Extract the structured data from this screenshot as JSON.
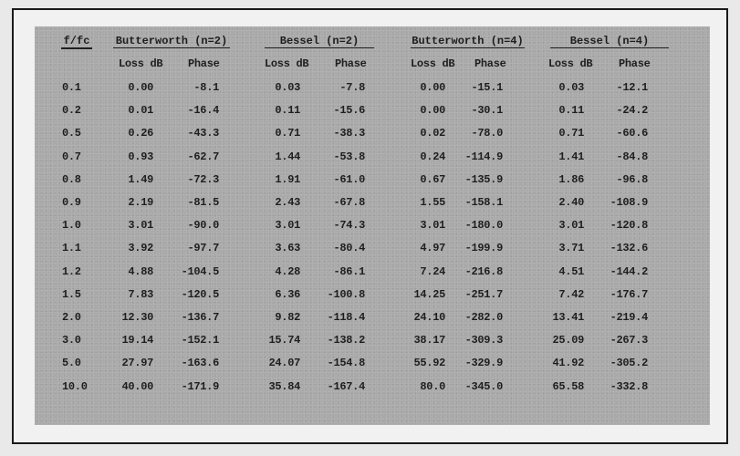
{
  "table": {
    "first_header": "f/fc",
    "groups": [
      "Butterworth (n=2)",
      "Bessel (n=2)",
      "Butterworth (n=4)",
      "Bessel (n=4)"
    ],
    "subheaders": [
      "Loss dB",
      "Phase"
    ],
    "rows": [
      [
        "0.1",
        "0.00",
        "-8.1",
        "0.03",
        "-7.8",
        "0.00",
        "-15.1",
        "0.03",
        "-12.1"
      ],
      [
        "0.2",
        "0.01",
        "-16.4",
        "0.11",
        "-15.6",
        "0.00",
        "-30.1",
        "0.11",
        "-24.2"
      ],
      [
        "0.5",
        "0.26",
        "-43.3",
        "0.71",
        "-38.3",
        "0.02",
        "-78.0",
        "0.71",
        "-60.6"
      ],
      [
        "0.7",
        "0.93",
        "-62.7",
        "1.44",
        "-53.8",
        "0.24",
        "-114.9",
        "1.41",
        "-84.8"
      ],
      [
        "0.8",
        "1.49",
        "-72.3",
        "1.91",
        "-61.0",
        "0.67",
        "-135.9",
        "1.86",
        "-96.8"
      ],
      [
        "0.9",
        "2.19",
        "-81.5",
        "2.43",
        "-67.8",
        "1.55",
        "-158.1",
        "2.40",
        "-108.9"
      ],
      [
        "1.0",
        "3.01",
        "-90.0",
        "3.01",
        "-74.3",
        "3.01",
        "-180.0",
        "3.01",
        "-120.8"
      ],
      [
        "1.1",
        "3.92",
        "-97.7",
        "3.63",
        "-80.4",
        "4.97",
        "-199.9",
        "3.71",
        "-132.6"
      ],
      [
        "1.2",
        "4.88",
        "-104.5",
        "4.28",
        "-86.1",
        "7.24",
        "-216.8",
        "4.51",
        "-144.2"
      ],
      [
        "1.5",
        "7.83",
        "-120.5",
        "6.36",
        "-100.8",
        "14.25",
        "-251.7",
        "7.42",
        "-176.7"
      ],
      [
        "2.0",
        "12.30",
        "-136.7",
        "9.82",
        "-118.4",
        "24.10",
        "-282.0",
        "13.41",
        "-219.4"
      ],
      [
        "3.0",
        "19.14",
        "-152.1",
        "15.74",
        "-138.2",
        "38.17",
        "-309.3",
        "25.09",
        "-267.3"
      ],
      [
        "5.0",
        "27.97",
        "-163.6",
        "24.07",
        "-154.8",
        "55.92",
        "-329.9",
        "41.92",
        "-305.2"
      ],
      [
        "10.0",
        "40.00",
        "-171.9",
        "35.84",
        "-167.4",
        "80.0",
        "-345.0",
        "65.58",
        "-332.8"
      ]
    ]
  }
}
